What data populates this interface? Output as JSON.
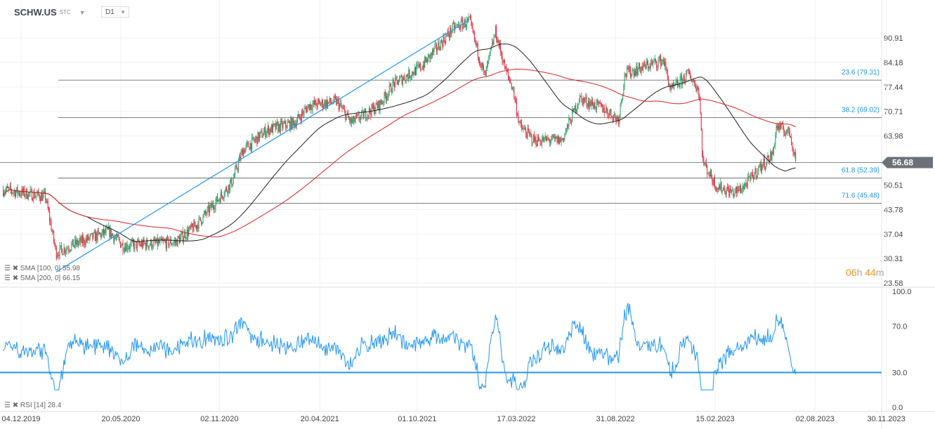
{
  "header": {
    "symbol": "SCHW.US",
    "exchange": "STC",
    "timeframe": "D1"
  },
  "indicators": {
    "sma100": "SMA [100, 0] 55.98",
    "sma200": "SMA [200, 0] 66.15",
    "rsi": "RSI [14] 28.4"
  },
  "timer": {
    "h": "06",
    "h_unit": "h",
    "m": "44",
    "m_unit": "m"
  },
  "colors": {
    "up": "#26a269",
    "down": "#e0293a",
    "sma100": "#222222",
    "sma200": "#e02020",
    "trendline": "#2196f3",
    "rsi": "#2196f3",
    "price_tag": "#6b7177"
  },
  "chart_data": [
    {
      "type": "candlestick",
      "title": "SCHW.US",
      "ylim": [
        23.58,
        93.5
      ],
      "y_ticks": [
        "90.91",
        "84.18",
        "77.44",
        "70.71",
        "63.98",
        "50.51",
        "43.78",
        "37.04",
        "30.31",
        "23.58"
      ],
      "x_ticks": [
        "04.12.2019",
        "20.05.2020",
        "02.11.2020",
        "20.04.2021",
        "01.10.2021",
        "17.03.2022",
        "31.08.2022",
        "15.02.2023",
        "02.08.2023",
        "30.11.2023"
      ],
      "x_tick_dates": [
        "2019-12-04",
        "2020-05-20",
        "2020-11-02",
        "2021-04-20",
        "2021-10-01",
        "2022-03-17",
        "2022-08-31",
        "2023-02-15",
        "2023-08-02",
        "2023-11-30"
      ],
      "last_price": "56.68",
      "fib_levels": [
        {
          "label": "23.6 (79.31)",
          "value": 79.31
        },
        {
          "label": "38.2 (69.02)",
          "value": 69.02
        },
        {
          "label": "61.8 (52.39)",
          "value": 52.39
        },
        {
          "label": "71.6 (45.48)",
          "value": 45.48
        }
      ],
      "trendline": {
        "from": [
          "2020-02-01",
          26.6
        ],
        "to": [
          "2021-12-28",
          95.9
        ]
      },
      "close_path": [
        [
          "2019-11-04",
          49.2
        ],
        [
          "2020-01-14",
          47.3
        ],
        [
          "2020-02-01",
          31.9
        ],
        [
          "2020-02-25",
          33.8
        ],
        [
          "2020-04-30",
          37.7
        ],
        [
          "2020-05-24",
          33.8
        ],
        [
          "2020-08-20",
          34.8
        ],
        [
          "2020-09-25",
          39.6
        ],
        [
          "2020-11-23",
          51.2
        ],
        [
          "2020-12-11",
          59.9
        ],
        [
          "2021-01-21",
          65.6
        ],
        [
          "2021-03-09",
          67.6
        ],
        [
          "2021-04-02",
          72.4
        ],
        [
          "2021-05-19",
          73.4
        ],
        [
          "2021-06-12",
          67.6
        ],
        [
          "2021-07-29",
          72.4
        ],
        [
          "2021-08-22",
          78.2
        ],
        [
          "2021-10-08",
          83.0
        ],
        [
          "2021-12-01",
          93.6
        ],
        [
          "2021-12-28",
          95.5
        ],
        [
          "2022-01-23",
          80.1
        ],
        [
          "2022-02-10",
          92.6
        ],
        [
          "2022-02-27",
          82.0
        ],
        [
          "2022-03-11",
          77.2
        ],
        [
          "2022-03-23",
          66.6
        ],
        [
          "2022-04-16",
          62.8
        ],
        [
          "2022-06-02",
          62.8
        ],
        [
          "2022-07-01",
          74.3
        ],
        [
          "2022-08-12",
          71.4
        ],
        [
          "2022-09-05",
          68.5
        ],
        [
          "2022-09-16",
          81.1
        ],
        [
          "2022-11-20",
          84.9
        ],
        [
          "2022-12-02",
          76.3
        ],
        [
          "2023-01-01",
          81.1
        ],
        [
          "2023-01-19",
          76.3
        ],
        [
          "2023-01-25",
          57.0
        ],
        [
          "2023-02-17",
          50.2
        ],
        [
          "2023-03-19",
          48.3
        ],
        [
          "2023-04-05",
          50.2
        ],
        [
          "2023-04-29",
          55.0
        ],
        [
          "2023-05-23",
          58.9
        ],
        [
          "2023-05-29",
          66.6
        ],
        [
          "2023-06-21",
          64.7
        ],
        [
          "2023-07-01",
          57.0
        ]
      ]
    },
    {
      "type": "line",
      "title": "RSI [14]",
      "ylim": [
        0,
        100
      ],
      "y_ticks": [
        "100.0",
        "70.0",
        "30.0",
        "0.0"
      ],
      "level": 30,
      "last_value": 28.4
    }
  ]
}
